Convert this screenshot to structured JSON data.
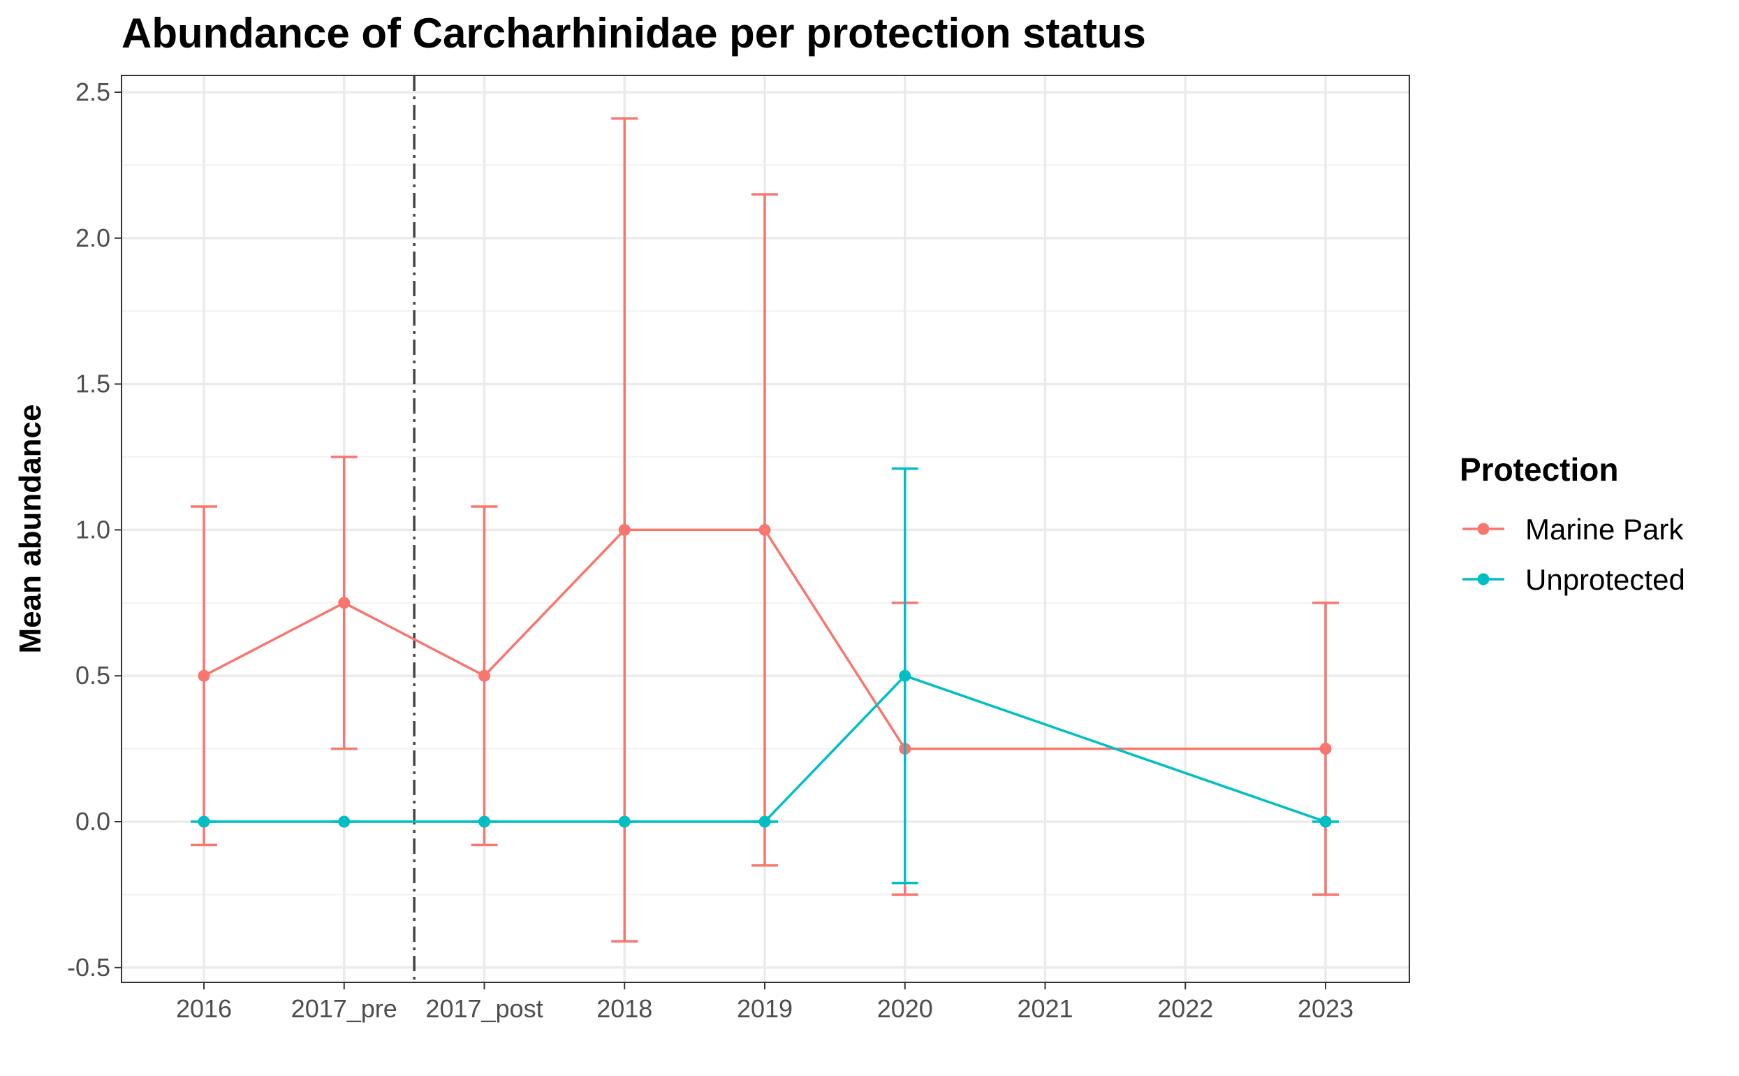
{
  "chart_data": {
    "type": "line",
    "title": "Abundance of Carcharhinidae per protection status",
    "xlabel": "",
    "ylabel": "Mean abundance",
    "categories": [
      "2016",
      "2017_pre",
      "2017_post",
      "2018",
      "2019",
      "2020",
      "2021",
      "2022",
      "2023"
    ],
    "yticks": [
      "-0.5",
      "0.0",
      "0.5",
      "1.0",
      "1.5",
      "2.0",
      "2.5"
    ],
    "ylim": [
      -0.55,
      2.55
    ],
    "grid": true,
    "legend": {
      "title": "Protection",
      "position": "right",
      "entries": [
        "Marine Park",
        "Unprotected"
      ]
    },
    "vline": {
      "category_between": [
        "2017_pre",
        "2017_post"
      ],
      "style": "dashdot",
      "color": "#444444"
    },
    "series": [
      {
        "name": "Marine Park",
        "color": "#F8766D",
        "points": [
          {
            "x": "2016",
            "y": 0.5,
            "ymin": -0.08,
            "ymax": 1.08
          },
          {
            "x": "2017_pre",
            "y": 0.75,
            "ymin": 0.25,
            "ymax": 1.25
          },
          {
            "x": "2017_post",
            "y": 0.5,
            "ymin": -0.08,
            "ymax": 1.08
          },
          {
            "x": "2018",
            "y": 1.0,
            "ymin": -0.41,
            "ymax": 2.41
          },
          {
            "x": "2019",
            "y": 1.0,
            "ymin": -0.15,
            "ymax": 2.15
          },
          {
            "x": "2020",
            "y": 0.25,
            "ymin": -0.25,
            "ymax": 0.75
          },
          {
            "x": "2023",
            "y": 0.25,
            "ymin": -0.25,
            "ymax": 0.75
          }
        ]
      },
      {
        "name": "Unprotected",
        "color": "#00BFC4",
        "points": [
          {
            "x": "2016",
            "y": 0.0,
            "ymin": 0.0,
            "ymax": 0.0
          },
          {
            "x": "2017_pre",
            "y": 0.0,
            "ymin": 0.0,
            "ymax": 0.0
          },
          {
            "x": "2017_post",
            "y": 0.0,
            "ymin": 0.0,
            "ymax": 0.0
          },
          {
            "x": "2018",
            "y": 0.0,
            "ymin": 0.0,
            "ymax": 0.0
          },
          {
            "x": "2019",
            "y": 0.0,
            "ymin": 0.0,
            "ymax": 0.0
          },
          {
            "x": "2020",
            "y": 0.5,
            "ymin": -0.21,
            "ymax": 1.21
          },
          {
            "x": "2023",
            "y": 0.0,
            "ymin": 0.0,
            "ymax": 0.0
          }
        ]
      }
    ]
  }
}
